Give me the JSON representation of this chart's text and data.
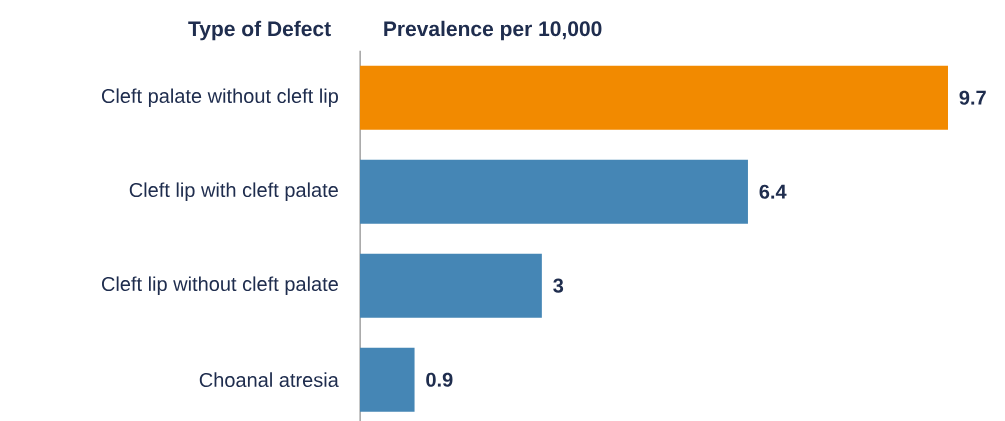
{
  "chart_data": {
    "type": "bar",
    "orientation": "horizontal",
    "ylabel": "Type of Defect",
    "xlabel": "Prevalence per 10,000",
    "categories": [
      "Cleft palate without cleft lip",
      "Cleft lip with cleft palate",
      "Cleft lip without cleft palate",
      "Choanal atresia"
    ],
    "values": [
      9.7,
      6.4,
      3,
      0.9
    ],
    "colors": [
      "#f28a00",
      "#4586b5",
      "#4586b5",
      "#4586b5"
    ],
    "data_labels": true
  }
}
